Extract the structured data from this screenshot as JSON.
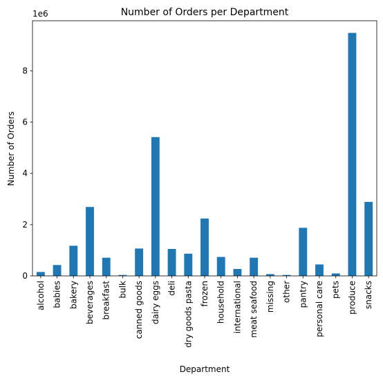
{
  "chart_data": {
    "type": "bar",
    "title": "Number of Orders per Department",
    "xlabel": "Department",
    "ylabel": "Number of Orders",
    "offset_label": "1e6",
    "categories": [
      "alcohol",
      "babies",
      "bakery",
      "beverages",
      "breakfast",
      "bulk",
      "canned goods",
      "dairy eggs",
      "deli",
      "dry goods pasta",
      "frozen",
      "household",
      "international",
      "meat seafood",
      "missing",
      "other",
      "pantry",
      "personal care",
      "pets",
      "produce",
      "snacks"
    ],
    "values": [
      0.153,
      0.424,
      1.176,
      2.69,
      0.709,
      0.035,
      1.068,
      5.414,
      1.052,
      0.867,
      2.237,
      0.739,
      0.27,
      0.709,
      0.069,
      0.036,
      1.876,
      0.447,
      0.097,
      9.479,
      2.887
    ],
    "yticks": [
      0,
      2,
      4,
      6,
      8
    ],
    "ylim": [
      0,
      9.953
    ],
    "bar_color": "#1f77b4",
    "grid": false,
    "legend": false
  }
}
